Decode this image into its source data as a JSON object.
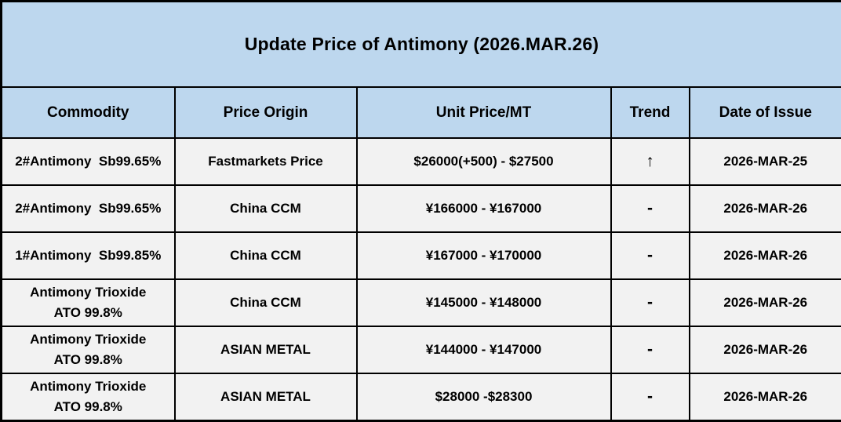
{
  "title": "Update Price of Antimony (2026.MAR.26)",
  "columns": [
    "Commodity",
    "Price Origin",
    "Unit Price/MT",
    "Trend",
    "Date of Issue"
  ],
  "rows": [
    {
      "commodity": "2#Antimony  Sb99.65%",
      "origin": "Fastmarkets Price",
      "price": "$26000(+500) - $27500",
      "trend": "↑",
      "date": "2026-MAR-25"
    },
    {
      "commodity": "2#Antimony  Sb99.65%",
      "origin": "China CCM",
      "price": "¥166000 - ¥167000",
      "trend": "-",
      "date": "2026-MAR-26"
    },
    {
      "commodity": "1#Antimony  Sb99.85%",
      "origin": "China CCM",
      "price": "¥167000 - ¥170000",
      "trend": "-",
      "date": "2026-MAR-26"
    },
    {
      "commodity": "Antimony Trioxide\nATO 99.8%",
      "origin": "China CCM",
      "price": "¥145000 - ¥148000",
      "trend": "-",
      "date": "2026-MAR-26"
    },
    {
      "commodity": "Antimony Trioxide\nATO 99.8%",
      "origin": "ASIAN METAL",
      "price": "¥144000 - ¥147000",
      "trend": "-",
      "date": "2026-MAR-26"
    },
    {
      "commodity": "Antimony Trioxide\nATO 99.8%",
      "origin": "ASIAN METAL",
      "price": "$28000 -$28300",
      "trend": "-",
      "date": "2026-MAR-26"
    }
  ],
  "colors": {
    "header_bg": "#BDD7EE",
    "row_bg": "#F2F2F2",
    "border_color": "#000000",
    "text_color": "#000000"
  }
}
